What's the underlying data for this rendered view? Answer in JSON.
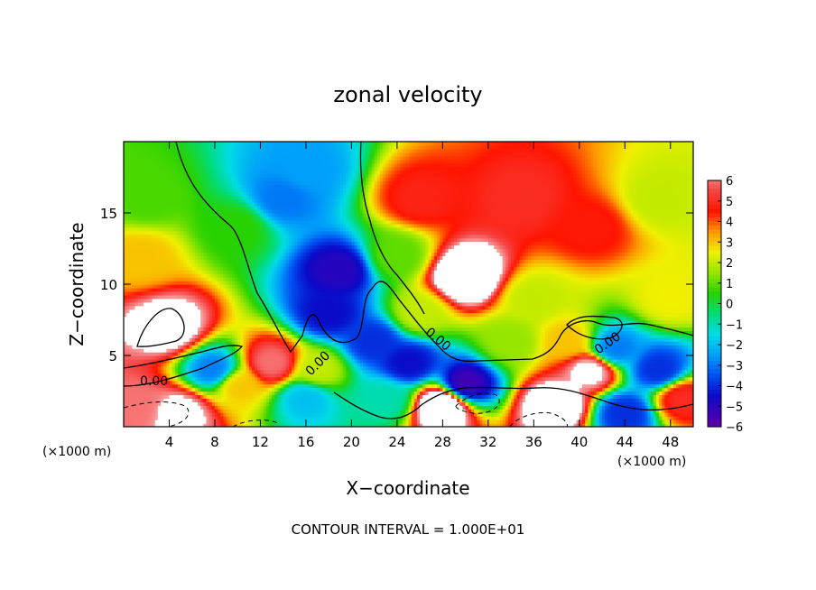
{
  "chart_data": {
    "type": "heatmap",
    "title": "zonal velocity",
    "xlabel": "X−coordinate",
    "ylabel": "Z−coordinate",
    "x_units_left": "(×1000 m)",
    "x_units_right": "(×1000 m)",
    "xlim": [
      0,
      50
    ],
    "ylim": [
      0,
      20
    ],
    "xticks": [
      4,
      8,
      12,
      16,
      20,
      24,
      28,
      32,
      36,
      40,
      44,
      48
    ],
    "yticks": [
      5,
      10,
      15
    ],
    "colorbar": {
      "ticks": [
        6,
        5,
        4,
        3,
        2,
        1,
        0,
        -1,
        -2,
        -3,
        -4,
        -5,
        -6
      ],
      "tick_labels": [
        "6",
        "5",
        "4",
        "3",
        "2",
        "1",
        "0",
        "−1",
        "−2",
        "−3",
        "−4",
        "−5",
        "−6"
      ],
      "range": [
        -6,
        6
      ]
    },
    "contour_level_label": "0.00",
    "footer": "CONTOUR INTERVAL = 1.000E+01",
    "features": [
      {
        "x": 30,
        "z": 10.5,
        "value": 9
      },
      {
        "x": 26,
        "z": 16,
        "value": 4.8
      },
      {
        "x": 35,
        "z": 16,
        "value": 5
      },
      {
        "x": 41,
        "z": 14,
        "value": 4.6
      },
      {
        "x": 47,
        "z": 16,
        "value": 2
      },
      {
        "x": 4,
        "z": 7,
        "value": 7.5
      },
      {
        "x": 1.5,
        "z": 12,
        "value": 3
      },
      {
        "x": 2,
        "z": 16,
        "value": 0.8
      },
      {
        "x": 10,
        "z": 14,
        "value": 0.5
      },
      {
        "x": 14,
        "z": 16,
        "value": -3
      },
      {
        "x": 16,
        "z": 18,
        "value": -2.5
      },
      {
        "x": 19,
        "z": 11,
        "value": -5
      },
      {
        "x": 18,
        "z": 8,
        "value": -4.5
      },
      {
        "x": 22,
        "z": 6,
        "value": -4
      },
      {
        "x": 25,
        "z": 4.5,
        "value": -4.5
      },
      {
        "x": 30,
        "z": 3,
        "value": -5.5
      },
      {
        "x": 5,
        "z": 1,
        "value": 7
      },
      {
        "x": 1,
        "z": 1.5,
        "value": 6
      },
      {
        "x": 13,
        "z": 4.5,
        "value": 6
      },
      {
        "x": 10,
        "z": 3,
        "value": 3
      },
      {
        "x": 17,
        "z": 4,
        "value": 2
      },
      {
        "x": 23,
        "z": 2,
        "value": -1
      },
      {
        "x": 28,
        "z": 1.5,
        "value": 9
      },
      {
        "x": 38,
        "z": 1.5,
        "value": 8
      },
      {
        "x": 41,
        "z": 4,
        "value": 7
      },
      {
        "x": 39,
        "z": 6,
        "value": 3
      },
      {
        "x": 43,
        "z": 5.5,
        "value": -3
      },
      {
        "x": 47,
        "z": 4,
        "value": -4
      },
      {
        "x": 49,
        "z": 2,
        "value": 5
      },
      {
        "x": 44,
        "z": 1,
        "value": -4
      },
      {
        "x": 8,
        "z": 4,
        "value": -3
      },
      {
        "x": 36,
        "z": 9,
        "value": 2
      },
      {
        "x": 34,
        "z": 6,
        "value": 1.5
      },
      {
        "x": 24,
        "z": 12,
        "value": 1
      },
      {
        "x": 26,
        "z": 8,
        "value": 2
      },
      {
        "x": 48,
        "z": 9,
        "value": 2.5
      },
      {
        "x": 16,
        "z": 2,
        "value": -2
      }
    ]
  }
}
